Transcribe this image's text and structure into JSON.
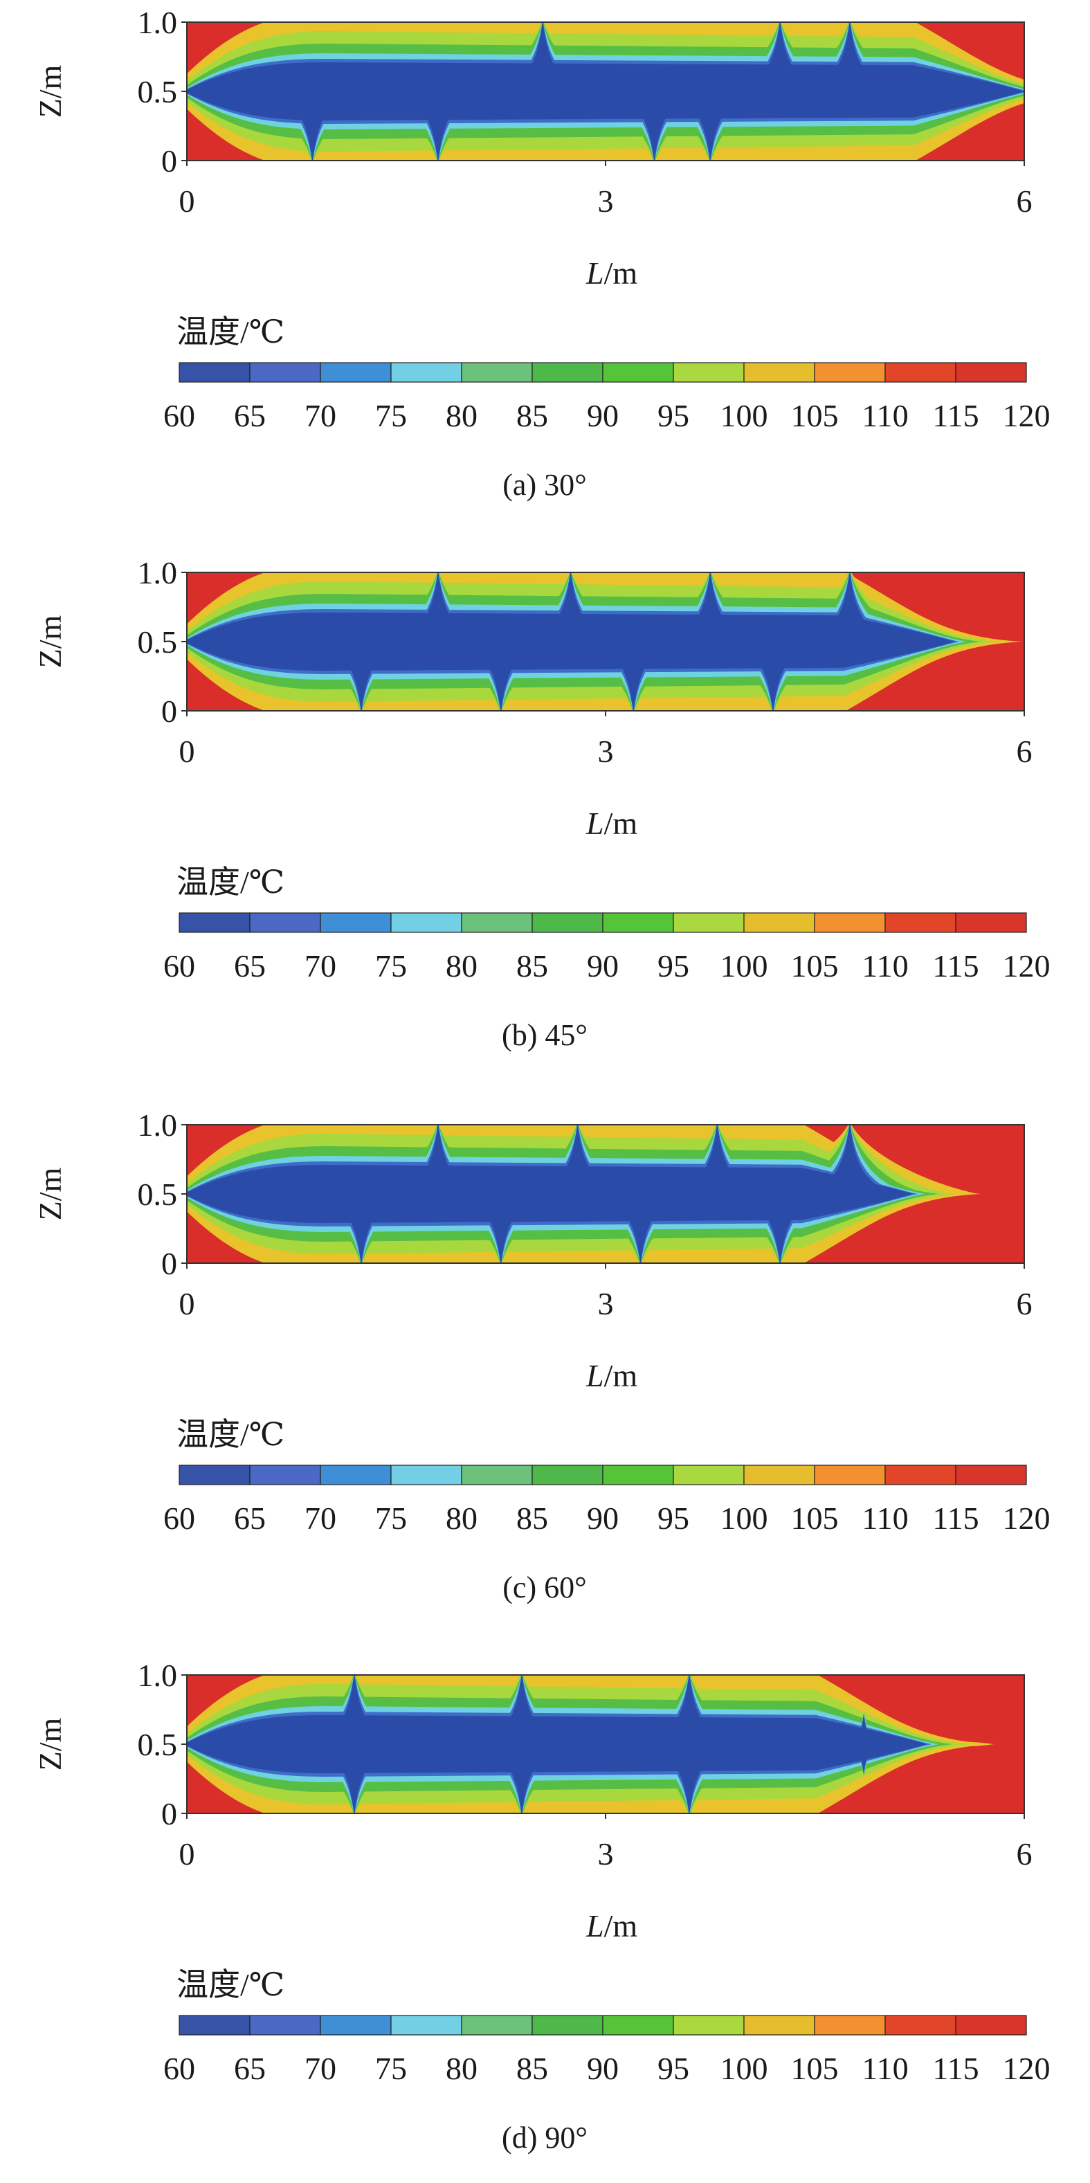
{
  "chart_data": [
    {
      "type": "heatmap",
      "caption": "(a) 30°",
      "xlabel_italic": "L",
      "xlabel_unit": "/m",
      "ylabel": "Z/m",
      "xlim": [
        0,
        6
      ],
      "ylim": [
        0,
        1
      ],
      "xticks": [
        "0",
        "3",
        "6"
      ],
      "yticks": [
        "0",
        "0.5",
        "1.0"
      ],
      "colorbar_title": "温度/℃",
      "colorbar_ticks": [
        "60",
        "65",
        "70",
        "75",
        "80",
        "85",
        "90",
        "95",
        "100",
        "105",
        "110",
        "115",
        "120"
      ],
      "tips": [
        [
          0.9,
          0
        ],
        [
          1.8,
          0
        ],
        [
          2.55,
          1
        ],
        [
          3.35,
          0
        ],
        [
          3.75,
          0
        ],
        [
          4.25,
          1
        ],
        [
          4.75,
          1
        ]
      ],
      "tail_end": 6.0
    },
    {
      "type": "heatmap",
      "caption": "(b) 45°",
      "xlabel_italic": "L",
      "xlabel_unit": "/m",
      "ylabel": "Z/m",
      "xlim": [
        0,
        6
      ],
      "ylim": [
        0,
        1
      ],
      "xticks": [
        "0",
        "3",
        "6"
      ],
      "yticks": [
        "0",
        "0.5",
        "1.0"
      ],
      "colorbar_title": "温度/℃",
      "colorbar_ticks": [
        "60",
        "65",
        "70",
        "75",
        "80",
        "85",
        "90",
        "95",
        "100",
        "105",
        "110",
        "115",
        "120"
      ],
      "tips": [
        [
          1.25,
          0
        ],
        [
          1.8,
          1
        ],
        [
          2.25,
          0
        ],
        [
          2.75,
          1
        ],
        [
          3.2,
          0
        ],
        [
          3.75,
          1
        ],
        [
          4.2,
          0
        ],
        [
          4.75,
          1
        ]
      ],
      "tail_end": 5.5
    },
    {
      "type": "heatmap",
      "caption": "(c) 60°",
      "xlabel_italic": "L",
      "xlabel_unit": "/m",
      "ylabel": "Z/m",
      "xlim": [
        0,
        6
      ],
      "ylim": [
        0,
        1
      ],
      "xticks": [
        "0",
        "3",
        "6"
      ],
      "yticks": [
        "0",
        "0.5",
        "1.0"
      ],
      "colorbar_title": "温度/℃",
      "colorbar_ticks": [
        "60",
        "65",
        "70",
        "75",
        "80",
        "85",
        "90",
        "95",
        "100",
        "105",
        "110",
        "115",
        "120"
      ],
      "tips": [
        [
          1.25,
          0
        ],
        [
          1.8,
          1
        ],
        [
          2.25,
          0
        ],
        [
          2.8,
          1
        ],
        [
          3.25,
          0
        ],
        [
          3.8,
          1
        ],
        [
          4.25,
          0
        ],
        [
          4.75,
          1
        ]
      ],
      "tail_end": 5.2
    },
    {
      "type": "heatmap",
      "caption": "(d) 90°",
      "xlabel_italic": "L",
      "xlabel_unit": "/m",
      "ylabel": "Z/m",
      "xlim": [
        0,
        6
      ],
      "ylim": [
        0,
        1
      ],
      "xticks": [
        "0",
        "3",
        "6"
      ],
      "yticks": [
        "0",
        "0.5",
        "1.0"
      ],
      "colorbar_title": "温度/℃",
      "colorbar_ticks": [
        "60",
        "65",
        "70",
        "75",
        "80",
        "85",
        "90",
        "95",
        "100",
        "105",
        "110",
        "115",
        "120"
      ],
      "tips": [
        [
          1.2,
          0
        ],
        [
          1.2,
          1
        ],
        [
          2.4,
          0
        ],
        [
          2.4,
          1
        ],
        [
          3.6,
          0
        ],
        [
          3.6,
          1
        ],
        [
          4.85,
          0.3
        ],
        [
          4.85,
          0.7
        ]
      ],
      "tail_end": 5.3
    }
  ],
  "colors": {
    "cold": "#2b4ba8",
    "hot": "#d92e2a",
    "colorbar_swatches": [
      "#3753a8",
      "#4a68c4",
      "#3f8fd6",
      "#73d0e4",
      "#6cc27a",
      "#4fb84a",
      "#56c438",
      "#a9d93e",
      "#e6bd2c",
      "#f3902f",
      "#e24528",
      "#d9352b"
    ]
  }
}
